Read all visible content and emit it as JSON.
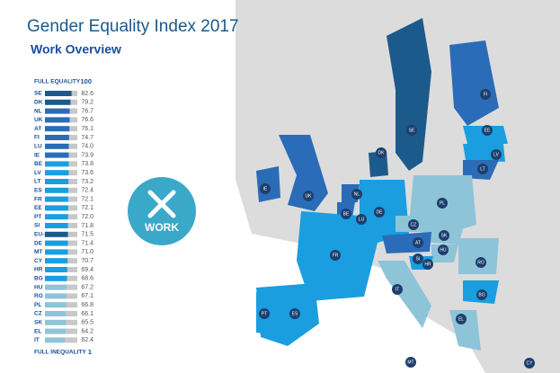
{
  "chart_data": {
    "type": "bar",
    "title": "Gender Equality Index 2017",
    "subtitle": "Work Overview",
    "top_label": "FULL EQUALITY",
    "bottom_label": "FULL INEQUALITY",
    "icon_label": "WORK",
    "xlim": [
      1,
      100
    ],
    "categories": [
      "SE",
      "DK",
      "NL",
      "UK",
      "AT",
      "FI",
      "LU",
      "IE",
      "BE",
      "LV",
      "LT",
      "ES",
      "FR",
      "EE",
      "PT",
      "SI",
      "EU-28",
      "DE",
      "MT",
      "CY",
      "HR",
      "BG",
      "HU",
      "RO",
      "PL",
      "CZ",
      "SK",
      "EL",
      "IT"
    ],
    "values": [
      82.6,
      79.2,
      76.7,
      76.6,
      76.1,
      74.7,
      74.0,
      73.9,
      73.8,
      73.6,
      73.2,
      72.4,
      72.1,
      72.1,
      72.0,
      71.8,
      71.5,
      71.4,
      71.0,
      70.7,
      69.4,
      68.6,
      67.2,
      67.1,
      66.8,
      66.1,
      65.5,
      64.2,
      62.4
    ],
    "value_labels": [
      "82.6",
      "79.2",
      "76.7",
      "76.6",
      "76.1",
      "74.7",
      "74.0",
      "73.9",
      "73.8",
      "73.6",
      "73.2",
      "72.4",
      "72.1",
      "72.1",
      "72.0",
      "71.8",
      "71.5",
      "71.4",
      "71.0",
      "70.7",
      "69.4",
      "68.6",
      "67.2",
      "67.1",
      "66.8",
      "66.1",
      "65.5",
      "64.2",
      "62.4"
    ],
    "colors": [
      "#1d5a8c",
      "#1d5a8c",
      "#2b6cb8",
      "#2b6cb8",
      "#2b6cb8",
      "#2b6cb8",
      "#2b6cb8",
      "#2b6cb8",
      "#1a9ee0",
      "#1a9ee0",
      "#1a9ee0",
      "#1a9ee0",
      "#1a9ee0",
      "#1a9ee0",
      "#1a9ee0",
      "#1a9ee0",
      "#1d5a8c",
      "#1a9ee0",
      "#1a9ee0",
      "#1a9ee0",
      "#1a9ee0",
      "#1a9ee0",
      "#8ec4d8",
      "#8ec4d8",
      "#8ec4d8",
      "#8ec4d8",
      "#8ec4d8",
      "#8ec4d8",
      "#8ec4d8"
    ],
    "remainder_color": "#c8c8c8",
    "map_labels": [
      "SE",
      "FI",
      "EE",
      "LV",
      "LT",
      "DK",
      "IE",
      "UK",
      "NL",
      "BE",
      "LU",
      "DE",
      "PL",
      "CZ",
      "SK",
      "AT",
      "HU",
      "SI",
      "HR",
      "RO",
      "BG",
      "FR",
      "IT",
      "PT",
      "ES",
      "EL",
      "MT",
      "CY"
    ]
  }
}
